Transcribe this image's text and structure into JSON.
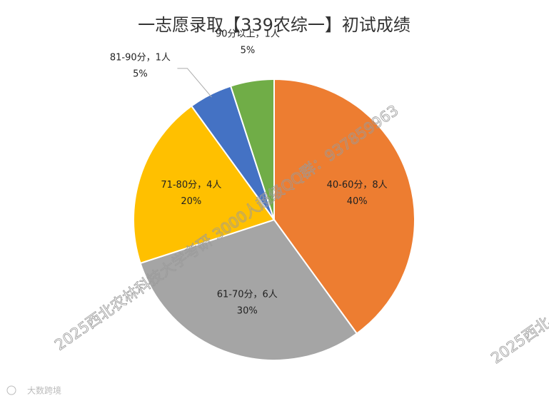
{
  "chart_data": {
    "type": "pie",
    "title": "一志愿录取【339农综一】初试成绩",
    "categories": [
      "40-60分，8人",
      "61-70分，6人",
      "71-80分，4人",
      "81-90分，1人",
      "90分以上，1人"
    ],
    "values": [
      40,
      30,
      20,
      5,
      5
    ],
    "value_labels": [
      "40%",
      "30%",
      "20%",
      "5%",
      "5%"
    ],
    "colors": [
      "#ED7D31",
      "#A5A5A5",
      "#FFC000",
      "#4472C4",
      "#70AD47"
    ],
    "annotations": [
      "2025西北农林科技大学考研 3000人超级QQ群：937859963",
      "2025西北",
      "大数跨境"
    ]
  }
}
